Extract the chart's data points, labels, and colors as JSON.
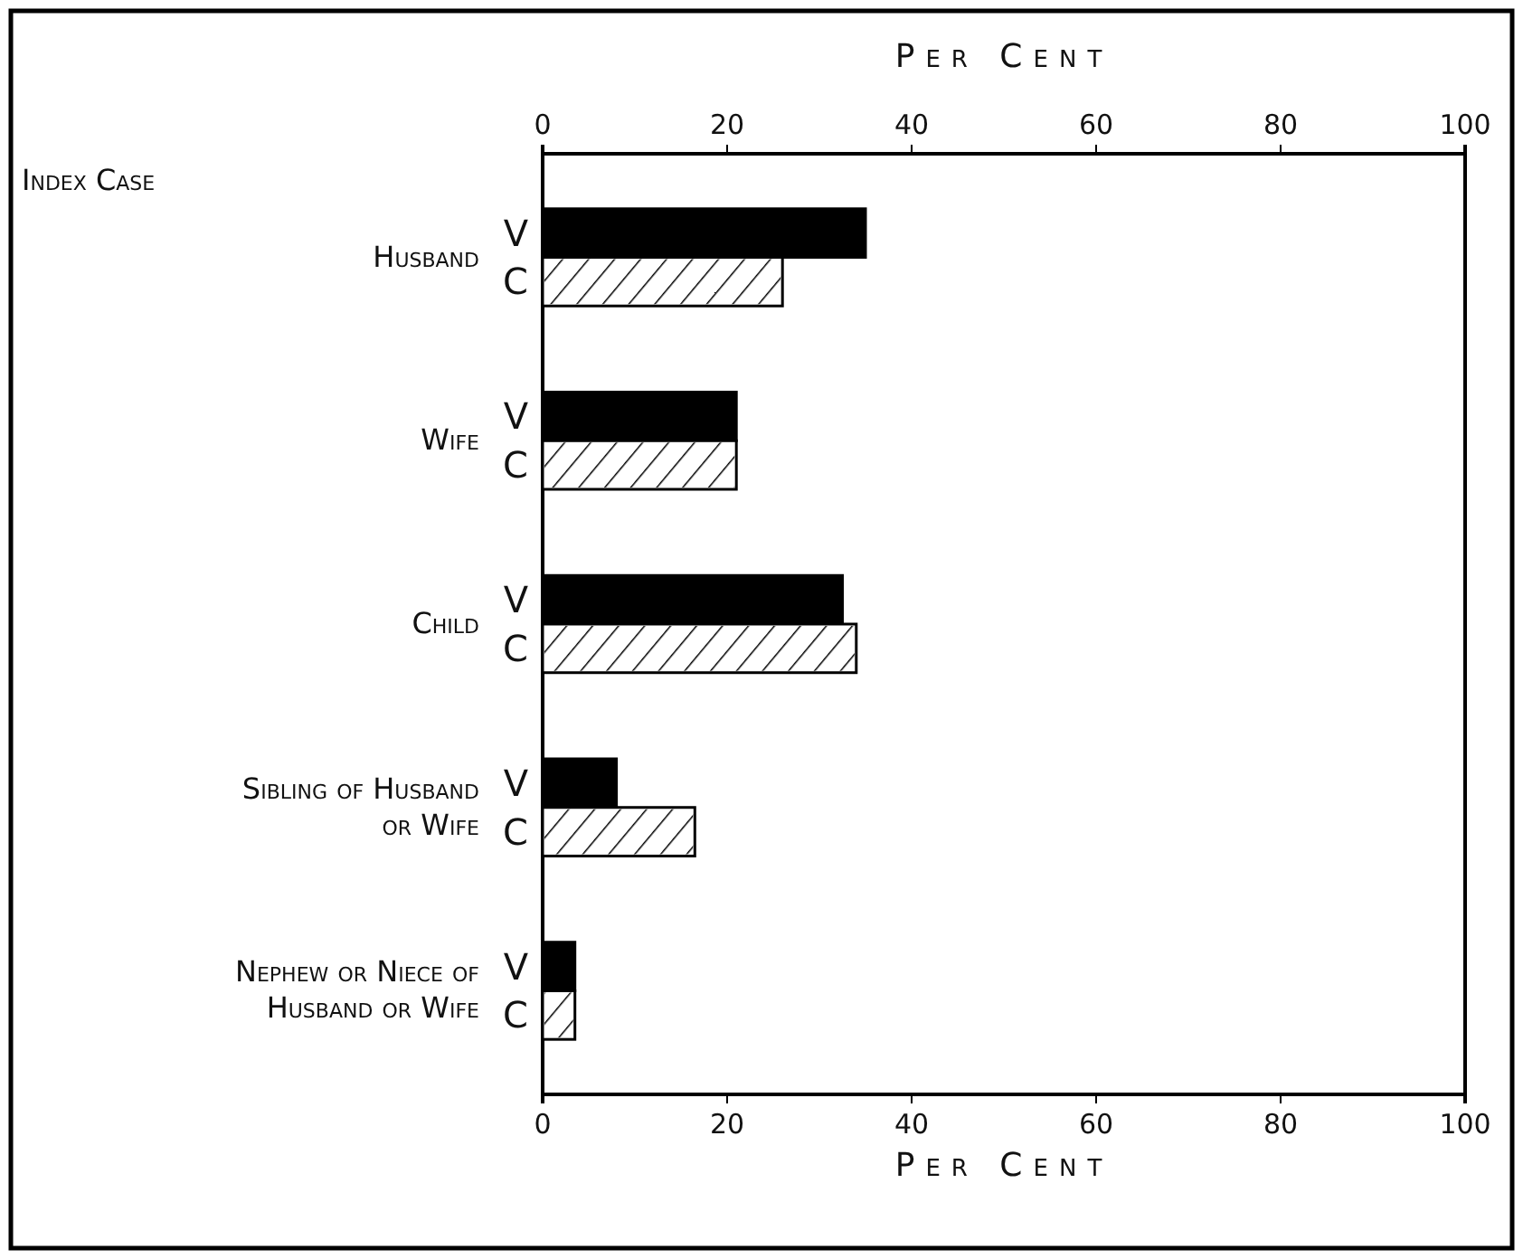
{
  "chart_data": {
    "type": "bar",
    "orientation": "horizontal",
    "annotations": [
      "Index Case"
    ],
    "xlabel": "Per Cent",
    "x2label": "Per Cent",
    "categories": [
      "Husband",
      "Wife",
      "Child",
      "Sibling of Husband or Wife",
      "Nephew or Niece of Husband or Wife"
    ],
    "series": [
      {
        "name": "V",
        "color": "#000000",
        "values": [
          35,
          21,
          32.5,
          8,
          3.5
        ]
      },
      {
        "name": "C",
        "color": "#ffffff",
        "values": [
          26,
          21,
          34,
          16.5,
          3.5
        ]
      }
    ],
    "xlim": [
      0,
      100
    ],
    "xticks": [
      0,
      20,
      40,
      60,
      80,
      100
    ],
    "x2lim": [
      0,
      100
    ],
    "x2ticks": [
      0,
      20,
      40,
      60,
      80,
      100
    ],
    "legend": false,
    "grid": false
  }
}
